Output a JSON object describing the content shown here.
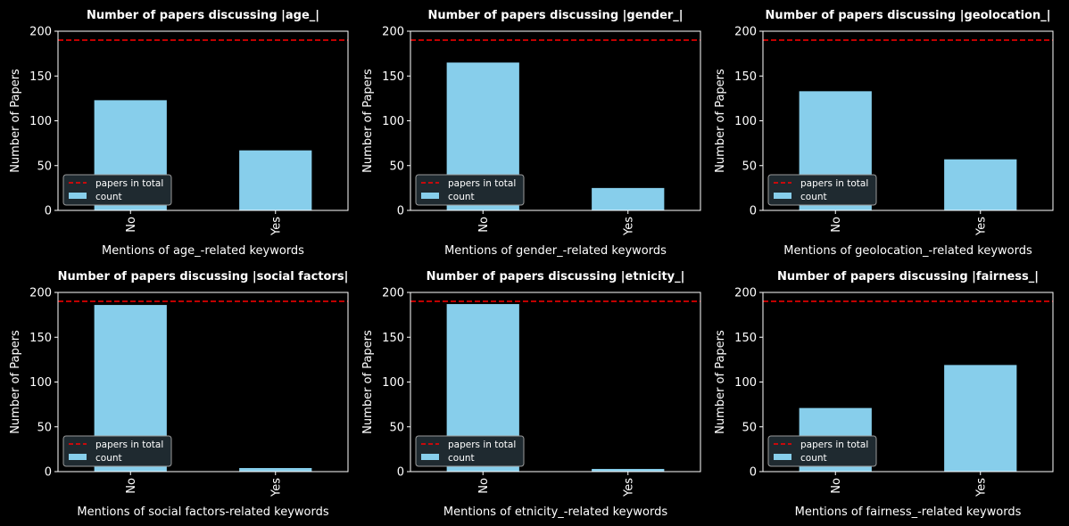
{
  "figure": {
    "background": "#000000"
  },
  "chart_data": [
    {
      "type": "bar",
      "title": "Number of papers discussing |age_|",
      "xlabel": "Mentions of age_-related keywords",
      "ylabel": "Number of Papers",
      "categories": [
        "No",
        "Yes"
      ],
      "series": [
        {
          "name": "count",
          "values": [
            123,
            67
          ],
          "color": "#87ceeb"
        }
      ],
      "reference_line": {
        "name": "papers in total",
        "value": 190,
        "color": "#ff0000",
        "style": "dashed"
      },
      "ylim": [
        0,
        200
      ],
      "yticks": [
        0,
        50,
        100,
        150,
        200
      ],
      "legend": "lower-left",
      "grid": false
    },
    {
      "type": "bar",
      "title": "Number of papers discussing |gender_|",
      "xlabel": "Mentions of gender_-related keywords",
      "ylabel": "Number of Papers",
      "categories": [
        "No",
        "Yes"
      ],
      "series": [
        {
          "name": "count",
          "values": [
            165,
            25
          ],
          "color": "#87ceeb"
        }
      ],
      "reference_line": {
        "name": "papers in total",
        "value": 190,
        "color": "#ff0000",
        "style": "dashed"
      },
      "ylim": [
        0,
        200
      ],
      "yticks": [
        0,
        50,
        100,
        150,
        200
      ],
      "legend": "lower-left",
      "grid": false
    },
    {
      "type": "bar",
      "title": "Number of papers discussing |geolocation_|",
      "xlabel": "Mentions of geolocation_-related keywords",
      "ylabel": "Number of Papers",
      "categories": [
        "No",
        "Yes"
      ],
      "series": [
        {
          "name": "count",
          "values": [
            133,
            57
          ],
          "color": "#87ceeb"
        }
      ],
      "reference_line": {
        "name": "papers in total",
        "value": 190,
        "color": "#ff0000",
        "style": "dashed"
      },
      "ylim": [
        0,
        200
      ],
      "yticks": [
        0,
        50,
        100,
        150,
        200
      ],
      "legend": "lower-left",
      "grid": false
    },
    {
      "type": "bar",
      "title": "Number of papers discussing |social factors|",
      "xlabel": "Mentions of social factors-related keywords",
      "ylabel": "Number of Papers",
      "categories": [
        "No",
        "Yes"
      ],
      "series": [
        {
          "name": "count",
          "values": [
            186,
            4
          ],
          "color": "#87ceeb"
        }
      ],
      "reference_line": {
        "name": "papers in total",
        "value": 190,
        "color": "#ff0000",
        "style": "dashed"
      },
      "ylim": [
        0,
        200
      ],
      "yticks": [
        0,
        50,
        100,
        150,
        200
      ],
      "legend": "lower-left",
      "grid": false
    },
    {
      "type": "bar",
      "title": "Number of papers discussing |etnicity_|",
      "xlabel": "Mentions of etnicity_-related keywords",
      "ylabel": "Number of Papers",
      "categories": [
        "No",
        "Yes"
      ],
      "series": [
        {
          "name": "count",
          "values": [
            187,
            3
          ],
          "color": "#87ceeb"
        }
      ],
      "reference_line": {
        "name": "papers in total",
        "value": 190,
        "color": "#ff0000",
        "style": "dashed"
      },
      "ylim": [
        0,
        200
      ],
      "yticks": [
        0,
        50,
        100,
        150,
        200
      ],
      "legend": "lower-left",
      "grid": false
    },
    {
      "type": "bar",
      "title": "Number of papers discussing |fairness_|",
      "xlabel": "Mentions of fairness_-related keywords",
      "ylabel": "Number of Papers",
      "categories": [
        "No",
        "Yes"
      ],
      "series": [
        {
          "name": "count",
          "values": [
            71,
            119
          ],
          "color": "#87ceeb"
        }
      ],
      "reference_line": {
        "name": "papers in total",
        "value": 190,
        "color": "#ff0000",
        "style": "dashed"
      },
      "ylim": [
        0,
        200
      ],
      "yticks": [
        0,
        50,
        100,
        150,
        200
      ],
      "legend": "lower-left",
      "grid": false
    }
  ]
}
